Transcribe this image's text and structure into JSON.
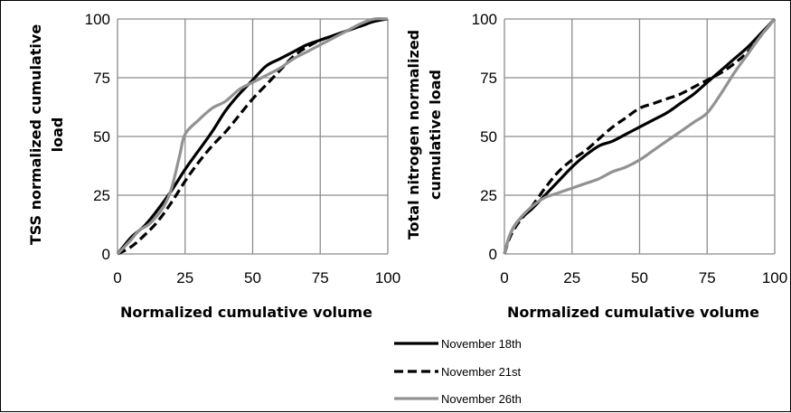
{
  "chart_data": [
    {
      "type": "line",
      "xlabel": "Normalized cumulative volume",
      "ylabel": [
        "TSS normalized cumulative",
        "load"
      ],
      "xlim": [
        0,
        100
      ],
      "ylim": [
        0,
        100
      ],
      "xticks": [
        "0",
        "25",
        "50",
        "75",
        "100"
      ],
      "yticks": [
        "0",
        "25",
        "50",
        "75",
        "100"
      ],
      "grid": true,
      "series": [
        {
          "name": "November 18th",
          "style": "solid",
          "color": "#000000",
          "x": [
            0,
            5,
            10,
            15,
            20,
            25,
            30,
            35,
            40,
            45,
            50,
            55,
            60,
            65,
            70,
            75,
            80,
            85,
            90,
            95,
            100
          ],
          "y": [
            0,
            7,
            12,
            19,
            27,
            36,
            44,
            52,
            61,
            68,
            74,
            80,
            83,
            86,
            89,
            91,
            93,
            95,
            97,
            99,
            100
          ]
        },
        {
          "name": "November 21st",
          "style": "dashed",
          "color": "#000000",
          "x": [
            0,
            5,
            10,
            15,
            20,
            25,
            30,
            35,
            40,
            45,
            50,
            55,
            60,
            65,
            70,
            75,
            80,
            85,
            90,
            95,
            100
          ],
          "y": [
            0,
            3,
            8,
            14,
            22,
            31,
            39,
            46,
            52,
            59,
            66,
            72,
            78,
            84,
            88,
            91,
            93,
            95,
            97,
            99,
            100
          ]
        },
        {
          "name": "November 26th",
          "style": "solid",
          "color": "#929292",
          "x": [
            0,
            5,
            8,
            12,
            17,
            20,
            23,
            25,
            30,
            35,
            40,
            45,
            50,
            55,
            60,
            65,
            70,
            75,
            80,
            85,
            90,
            95,
            100
          ],
          "y": [
            0,
            6,
            10,
            13,
            20,
            28,
            42,
            51,
            57,
            62,
            65,
            70,
            73,
            76,
            79,
            83,
            86,
            89,
            92,
            95,
            98,
            100,
            100
          ]
        }
      ]
    },
    {
      "type": "line",
      "xlabel": "Normalized cumulative volume",
      "ylabel": [
        "Total nitrogen normalized",
        "cumulative load"
      ],
      "xlim": [
        0,
        100
      ],
      "ylim": [
        0,
        100
      ],
      "xticks": [
        "0",
        "25",
        "50",
        "75",
        "100"
      ],
      "yticks": [
        "0",
        "25",
        "50",
        "75",
        "100"
      ],
      "grid": true,
      "series": [
        {
          "name": "November 18th",
          "style": "solid",
          "color": "#000000",
          "x": [
            0,
            2,
            5,
            10,
            15,
            20,
            25,
            30,
            35,
            40,
            45,
            50,
            55,
            60,
            65,
            70,
            75,
            80,
            85,
            90,
            95,
            100
          ],
          "y": [
            0,
            8,
            14,
            19,
            25,
            31,
            37,
            42,
            46,
            48,
            51,
            54,
            57,
            60,
            64,
            68,
            73,
            78,
            83,
            88,
            94,
            100
          ]
        },
        {
          "name": "November 21st",
          "style": "dashed",
          "color": "#000000",
          "x": [
            0,
            2,
            5,
            10,
            15,
            20,
            25,
            30,
            35,
            40,
            45,
            50,
            55,
            60,
            65,
            70,
            75,
            80,
            85,
            90,
            95,
            100
          ],
          "y": [
            0,
            7,
            13,
            20,
            28,
            35,
            40,
            44,
            49,
            54,
            58,
            62,
            64,
            66,
            68,
            71,
            74,
            77,
            81,
            86,
            93,
            100
          ]
        },
        {
          "name": "November 26th",
          "style": "solid",
          "color": "#929292",
          "x": [
            0,
            2,
            5,
            10,
            15,
            20,
            25,
            30,
            35,
            40,
            45,
            50,
            55,
            60,
            65,
            70,
            75,
            80,
            85,
            90,
            95,
            100
          ],
          "y": [
            0,
            8,
            14,
            20,
            24,
            26,
            28,
            30,
            32,
            35,
            37,
            40,
            44,
            48,
            52,
            56,
            60,
            68,
            77,
            85,
            93,
            100
          ]
        }
      ]
    }
  ],
  "legend": {
    "placement": "bottom-center",
    "entries": [
      {
        "label": "November 18th",
        "style": "solid",
        "color": "#000000"
      },
      {
        "label": "November 21st",
        "style": "dashed",
        "color": "#000000"
      },
      {
        "label": "November 26th",
        "style": "solid",
        "color": "#929292"
      }
    ]
  }
}
